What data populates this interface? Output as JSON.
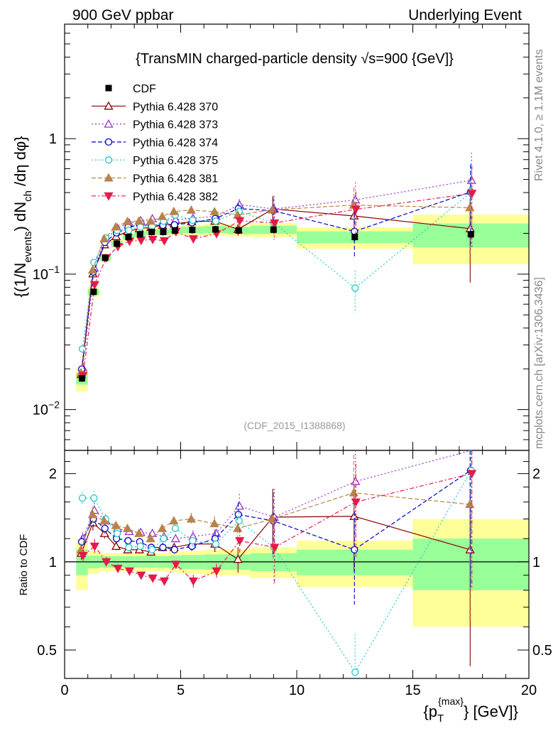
{
  "header": {
    "left": "900 GeV ppbar",
    "right": "Underlying Event"
  },
  "side_labels": {
    "rivet": "Rivet 4.1.0, ≥ 1.1M events",
    "mcplots": "mcplots.cern.ch [arXiv:1306.3436]"
  },
  "chart_data": {
    "type": "line",
    "title": "{TransMIN charged-particle density √s=900 {GeV]}",
    "ylabel_main": "{(1/Nevents) dNch /dη dφ}",
    "ylabel_parts": [
      "{(1/N",
      "events",
      ") dN",
      "ch",
      " /dη  dφ}"
    ],
    "xlabel_parts": [
      "{p",
      "T",
      "{max}",
      "} [GeV]}"
    ],
    "ratio_ylabel": "Ratio to CDF",
    "watermark": "(CDF_2015_I1388868)",
    "xlim": [
      0,
      20
    ],
    "ylim_main": [
      0.005,
      7
    ],
    "ylim_ratio": [
      0.4,
      2.4
    ],
    "x_ticks": [
      "0",
      "5",
      "10",
      "15",
      "20"
    ],
    "y_ticks_main": [
      {
        "v": 0.01,
        "base": "10",
        "exp": "−2"
      },
      {
        "v": 0.1,
        "base": "10",
        "exp": "−1"
      },
      {
        "v": 1,
        "base": "1",
        "exp": ""
      }
    ],
    "y_ticks_ratio": [
      "0.5",
      "1",
      "2"
    ],
    "data": {
      "name": "CDF",
      "x": [
        0.75,
        1.25,
        1.75,
        2.25,
        2.75,
        3.25,
        3.75,
        4.25,
        4.75,
        5.5,
        6.5,
        7.5,
        9.0,
        12.5,
        17.5
      ],
      "y": [
        0.017,
        0.074,
        0.132,
        0.168,
        0.188,
        0.197,
        0.205,
        0.205,
        0.21,
        0.212,
        0.214,
        0.21,
        0.213,
        0.188,
        0.197
      ],
      "bins": [
        [
          0.5,
          1.0
        ],
        [
          1.0,
          1.5
        ],
        [
          1.5,
          2.0
        ],
        [
          2.0,
          2.5
        ],
        [
          2.5,
          3.0
        ],
        [
          3.0,
          3.5
        ],
        [
          3.5,
          4.0
        ],
        [
          4.0,
          4.5
        ],
        [
          4.5,
          5.0
        ],
        [
          5.0,
          6.0
        ],
        [
          6.0,
          7.0
        ],
        [
          7.0,
          8.0
        ],
        [
          8.0,
          10.0
        ],
        [
          10.0,
          15.0
        ],
        [
          15.0,
          20.0
        ]
      ],
      "band_green": [
        0.1,
        0.05,
        0.045,
        0.045,
        0.045,
        0.045,
        0.045,
        0.045,
        0.05,
        0.055,
        0.06,
        0.06,
        0.07,
        0.1,
        0.2
      ],
      "band_yellow": [
        0.2,
        0.09,
        0.07,
        0.07,
        0.07,
        0.07,
        0.07,
        0.07,
        0.08,
        0.09,
        0.1,
        0.1,
        0.12,
        0.18,
        0.4
      ]
    },
    "series": [
      {
        "name": "Pythia 6.428 370",
        "color": "#8b0000",
        "dash": "",
        "marker": "triangle-open",
        "ratio": [
          1.07,
          1.36,
          1.25,
          1.13,
          1.1,
          1.1,
          1.08,
          1.12,
          1.12,
          1.15,
          1.15,
          1.02,
          1.42,
          1.43,
          1.1
        ],
        "err": [
          0.05,
          0.06,
          0.04,
          0.03,
          0.03,
          0.03,
          0.03,
          0.03,
          0.03,
          0.05,
          0.06,
          0.1,
          0.25,
          0.35,
          0.6
        ]
      },
      {
        "name": "Pythia 6.428 373",
        "color": "#9932cc",
        "dash": "2,3",
        "marker": "triangle-open",
        "ratio": [
          1.2,
          1.5,
          1.38,
          1.3,
          1.27,
          1.26,
          1.25,
          1.22,
          1.2,
          1.22,
          1.25,
          1.55,
          1.42,
          1.88,
          2.5
        ],
        "err": [
          0.05,
          0.06,
          0.04,
          0.03,
          0.03,
          0.03,
          0.03,
          0.03,
          0.03,
          0.05,
          0.06,
          0.1,
          0.25,
          0.35,
          0.6
        ]
      },
      {
        "name": "Pythia 6.428 374",
        "color": "#0000cd",
        "dash": "6,3",
        "marker": "circle-open",
        "ratio": [
          1.17,
          1.4,
          1.3,
          1.2,
          1.18,
          1.17,
          1.12,
          1.12,
          1.1,
          1.13,
          1.2,
          1.45,
          1.38,
          1.1,
          2.05
        ],
        "err": [
          0.05,
          0.06,
          0.04,
          0.03,
          0.03,
          0.03,
          0.03,
          0.03,
          0.03,
          0.05,
          0.06,
          0.1,
          0.25,
          0.35,
          0.6
        ]
      },
      {
        "name": "Pythia 6.428 375",
        "color": "#20c8c8",
        "dash": "2,3",
        "marker": "circle-open",
        "ratio": [
          1.65,
          1.65,
          1.4,
          1.25,
          1.12,
          1.13,
          1.1,
          1.2,
          1.3,
          1.18,
          1.15,
          1.38,
          1.12,
          0.42,
          2.05
        ],
        "err": [
          0.05,
          0.06,
          0.04,
          0.03,
          0.03,
          0.03,
          0.03,
          0.03,
          0.03,
          0.05,
          0.06,
          0.1,
          0.25,
          0.35,
          0.6
        ]
      },
      {
        "name": "Pythia 6.428 381",
        "color": "#b8834a",
        "dash": "6,3",
        "marker": "triangle-solid",
        "ratio": [
          1.1,
          1.45,
          1.38,
          1.33,
          1.3,
          1.25,
          1.2,
          1.3,
          1.38,
          1.4,
          1.35,
          1.3,
          1.4,
          1.72,
          1.57
        ],
        "err": [
          0.05,
          0.06,
          0.04,
          0.03,
          0.03,
          0.03,
          0.03,
          0.03,
          0.03,
          0.05,
          0.06,
          0.1,
          0.25,
          0.35,
          0.6
        ]
      },
      {
        "name": "Pythia 6.428 382",
        "color": "#e6194b",
        "dash": "6,3,2,3",
        "marker": "triangledown-solid",
        "ratio": [
          1.05,
          1.13,
          1.0,
          0.95,
          0.93,
          0.9,
          0.88,
          0.86,
          0.98,
          0.86,
          0.93,
          1.18,
          1.12,
          1.6,
          2.0
        ],
        "err": [
          0.05,
          0.06,
          0.04,
          0.03,
          0.03,
          0.03,
          0.03,
          0.03,
          0.03,
          0.05,
          0.06,
          0.1,
          0.25,
          0.35,
          0.6
        ]
      }
    ]
  }
}
